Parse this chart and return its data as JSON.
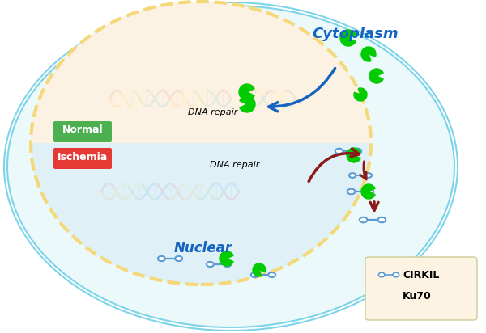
{
  "bg_color": "#ffffff",
  "cell_outer_color": "#b3e8f0",
  "cell_outer_edge": "#7dd4e8",
  "nucleus_fill": "#ddf0f8",
  "nucleus_edge": "#f5d87a",
  "cytoplasm_fill": "#fdf3e3",
  "cytoplasm_edge": "#f5d87a",
  "label_cytoplasm": "Cytoplasm",
  "label_nuclear": "Nuclear",
  "label_dna_repair_top": "DNA repair",
  "label_dna_repair_bottom": "DNA repair",
  "label_normal": "Normal",
  "label_ischemia": "Ischemia",
  "label_cirkil": "CIRKIL",
  "label_ku70": "Ku70",
  "normal_bg": "#4caf50",
  "ischemia_bg": "#e53935",
  "cytoplasm_label_color": "#1565c0",
  "nuclear_label_color": "#1565c0",
  "dna_colors": [
    "#e53935",
    "#ff9800",
    "#ffeb3b",
    "#4caf50",
    "#1e88e5"
  ],
  "arrow_blue_color": "#1565c0",
  "arrow_red_color": "#8b1a1a",
  "ku70_color": "#00cc00",
  "cirkil_color": "#5b9bd5",
  "legend_bg": "#fdf3e3",
  "upward_arrow_color": "#8b1a1a"
}
